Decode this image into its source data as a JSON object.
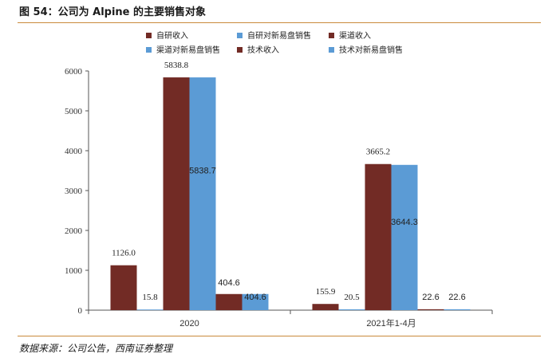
{
  "header": {
    "title": "图 54：公司为 Alpine 的主要销售对象"
  },
  "footer": {
    "source": "数据来源：公司公告，西南证券整理"
  },
  "colors": {
    "revenue": "#722b25",
    "sales": "#5b9bd5",
    "rule": "#c98a3c",
    "axis": "#555555"
  },
  "chart_data": {
    "type": "bar",
    "categories": [
      "2020",
      "2021年1-4月"
    ],
    "series": [
      {
        "name": "自研收入",
        "color": "#722b25",
        "values": [
          1126.0,
          155.9
        ],
        "labels": [
          "1126.0",
          "155.9"
        ]
      },
      {
        "name": "自研对新易盘销售",
        "color": "#5b9bd5",
        "values": [
          15.8,
          20.5
        ],
        "labels": [
          "15.8",
          "20.5"
        ]
      },
      {
        "name": "渠道收入",
        "color": "#722b25",
        "values": [
          5838.8,
          3665.2
        ],
        "labels": [
          "5838.8",
          "3665.2"
        ]
      },
      {
        "name": "渠道对新易盘销售",
        "color": "#5b9bd5",
        "values": [
          5838.7,
          3644.3
        ],
        "labels": [
          "5838.7",
          "3644.3"
        ]
      },
      {
        "name": "技术收入",
        "color": "#722b25",
        "values": [
          404.6,
          22.6
        ],
        "labels": [
          "404.6",
          "22.6"
        ]
      },
      {
        "name": "技术对新易盘销售",
        "color": "#5b9bd5",
        "values": [
          404.6,
          22.6
        ],
        "labels": [
          "404.6",
          "22.6"
        ]
      }
    ],
    "yticks": [
      "0",
      "1000",
      "2000",
      "3000",
      "4000",
      "5000",
      "6000"
    ],
    "ylim": [
      0,
      6000
    ],
    "legend_position": "top",
    "grid": false
  }
}
